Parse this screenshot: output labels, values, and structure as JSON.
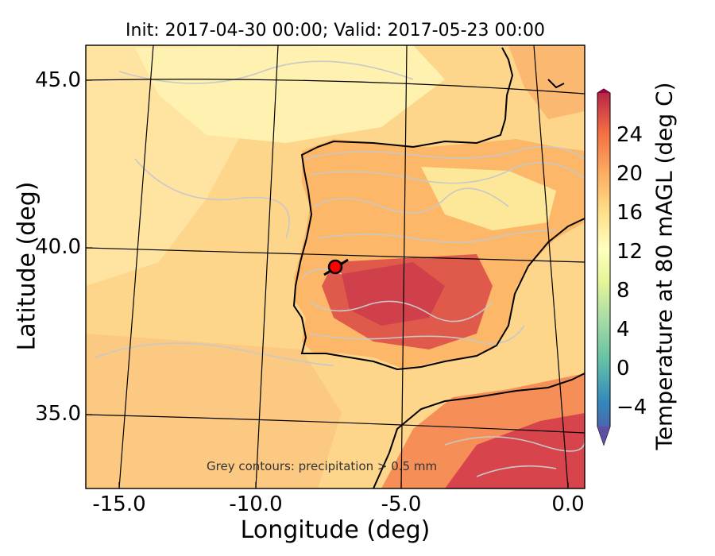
{
  "title": "Init: 2017-04-30 00:00; Valid: 2017-05-23 00:00",
  "x_axis": {
    "label": "Longitude (deg)",
    "ticks": [
      "-15.0",
      "-10.0",
      "-5.0",
      "0.0"
    ]
  },
  "y_axis": {
    "label": "Latitude (deg)",
    "ticks": [
      "45.0",
      "40.0",
      "35.0"
    ]
  },
  "colorbar": {
    "label": "Temperature at 80 mAGL (deg C)",
    "ticks": [
      "24",
      "20",
      "16",
      "12",
      "8",
      "4",
      "0",
      "−4"
    ],
    "range": [
      -6,
      28
    ]
  },
  "annotation": "Grey contours: precipitation > 0.5 mm",
  "marker": {
    "label": "site",
    "lon": -7.6,
    "lat": 39.3
  },
  "colors": {
    "ocean": "#fdd68b",
    "land_hot": "#d8444b",
    "contour": "#c8c8c8",
    "marker": "#ff0000"
  }
}
